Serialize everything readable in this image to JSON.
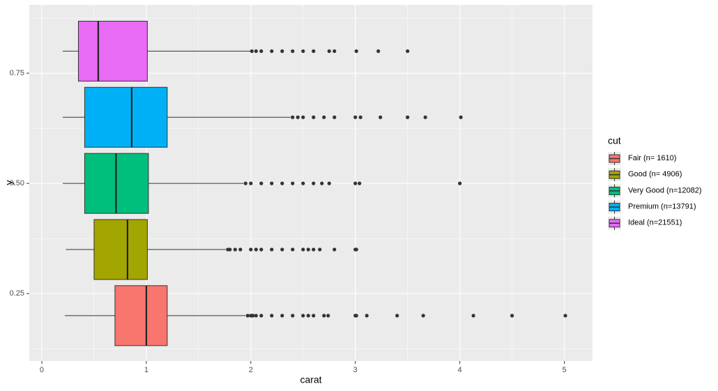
{
  "chart_data": {
    "type": "boxplot",
    "orientation": "horizontal",
    "xlabel": "carat",
    "ylabel": "y",
    "legend_title": "cut",
    "legend_position": "right",
    "grid": true,
    "xlim": [
      -0.12,
      5.27
    ],
    "ylim": [
      0.097,
      0.905
    ],
    "xticks": [
      0,
      1,
      2,
      3,
      4,
      5
    ],
    "yticks": [
      0.25,
      {
        "value": 0.5,
        "label": "0.50"
      },
      0.75
    ],
    "minor_xticks": [
      0.5,
      1.5,
      2.5,
      3.5,
      4.5
    ],
    "minor_yticks": [
      0.125,
      0.375,
      0.625,
      0.875
    ],
    "series": [
      {
        "name": "Fair (n= 1610)",
        "color": "#F8766D",
        "y": 0.2,
        "min": 0.22,
        "q1": 0.7,
        "median": 1.0,
        "q3": 1.2,
        "max": 1.95,
        "outliers": [
          1.97,
          2.0,
          2.01,
          2.02,
          2.05,
          2.1,
          2.2,
          2.3,
          2.4,
          2.5,
          2.55,
          2.6,
          2.7,
          2.74,
          3.0,
          3.01,
          3.11,
          3.4,
          3.65,
          4.13,
          4.5,
          5.01
        ]
      },
      {
        "name": "Good (n= 4906)",
        "color": "#A3A500",
        "y": 0.35,
        "min": 0.23,
        "q1": 0.5,
        "median": 0.82,
        "q3": 1.01,
        "max": 1.76,
        "outliers": [
          1.78,
          1.8,
          1.85,
          1.9,
          2.0,
          2.05,
          2.1,
          2.2,
          2.3,
          2.4,
          2.5,
          2.55,
          2.6,
          2.66,
          2.8,
          3.0,
          3.01
        ]
      },
      {
        "name": "Very Good (n=12082)",
        "color": "#00BF7D",
        "y": 0.5,
        "min": 0.2,
        "q1": 0.41,
        "median": 0.71,
        "q3": 1.02,
        "max": 1.93,
        "outliers": [
          1.95,
          2.0,
          2.1,
          2.2,
          2.3,
          2.4,
          2.5,
          2.6,
          2.68,
          2.75,
          3.0,
          3.04,
          4.0
        ]
      },
      {
        "name": "Premium (n=13791)",
        "color": "#00B0F6",
        "y": 0.65,
        "min": 0.2,
        "q1": 0.41,
        "median": 0.86,
        "q3": 1.2,
        "max": 2.38,
        "outliers": [
          2.4,
          2.45,
          2.5,
          2.6,
          2.7,
          2.8,
          3.0,
          3.05,
          3.24,
          3.5,
          3.67,
          4.01
        ]
      },
      {
        "name": "Ideal (n=21551)",
        "color": "#E76BF3",
        "y": 0.8,
        "min": 0.2,
        "q1": 0.35,
        "median": 0.54,
        "q3": 1.01,
        "max": 2.0,
        "outliers": [
          2.01,
          2.05,
          2.1,
          2.2,
          2.3,
          2.4,
          2.5,
          2.6,
          2.75,
          2.8,
          3.01,
          3.22,
          3.5
        ]
      }
    ]
  }
}
